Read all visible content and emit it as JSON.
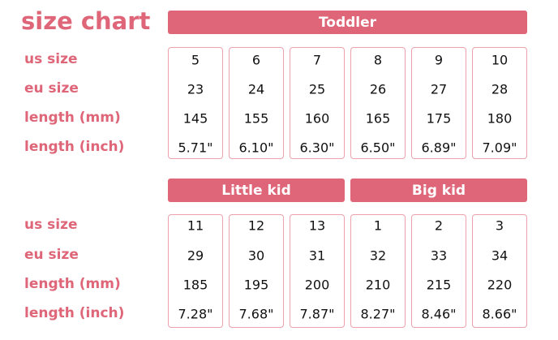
{
  "title": "size chart",
  "accent": "#de6678",
  "row_labels": [
    "us size",
    "eu size",
    "length (mm)",
    "length (inch)"
  ],
  "sections": [
    {
      "groups": [
        {
          "label": "Toddler",
          "span": 6
        }
      ],
      "columns": [
        [
          "5",
          "23",
          "145",
          "5.71\""
        ],
        [
          "6",
          "24",
          "155",
          "6.10\""
        ],
        [
          "7",
          "25",
          "160",
          "6.30\""
        ],
        [
          "8",
          "26",
          "165",
          "6.50\""
        ],
        [
          "9",
          "27",
          "175",
          "6.89\""
        ],
        [
          "10",
          "28",
          "180",
          "7.09\""
        ]
      ]
    },
    {
      "groups": [
        {
          "label": "Little kid",
          "span": 3
        },
        {
          "label": "Big kid",
          "span": 3
        }
      ],
      "columns": [
        [
          "11",
          "29",
          "185",
          "7.28\""
        ],
        [
          "12",
          "30",
          "195",
          "7.68\""
        ],
        [
          "13",
          "31",
          "200",
          "7.87\""
        ],
        [
          "1",
          "32",
          "210",
          "8.27\""
        ],
        [
          "2",
          "33",
          "215",
          "8.46\""
        ],
        [
          "3",
          "34",
          "220",
          "8.66\""
        ]
      ]
    }
  ]
}
